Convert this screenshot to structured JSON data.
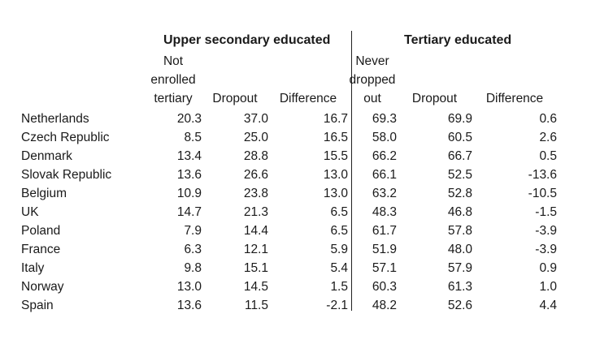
{
  "headers": {
    "upper_secondary": "Upper secondary educated",
    "tertiary": "Tertiary educated",
    "col_country": "",
    "col_not_enrolled": [
      "Not",
      "enrolled",
      "tertiary"
    ],
    "col_dropout_upper": "Dropout",
    "col_difference_upper": "Difference",
    "col_never_dropped": [
      "Never",
      "dropped",
      "out"
    ],
    "col_dropout_tertiary": "Dropout",
    "col_difference_tertiary": "Difference"
  },
  "rows": [
    {
      "country": "Netherlands",
      "not_enrolled": "20.3",
      "dropout_upper": "37.0",
      "diff_upper": "16.7",
      "diff_upper_bold": true,
      "never_dropped": "69.3",
      "dropout_tertiary": "69.9",
      "diff_tertiary": "0.6",
      "diff_tertiary_bold": false
    },
    {
      "country": "Czech Republic",
      "not_enrolled": "8.5",
      "dropout_upper": "25.0",
      "diff_upper": "16.5",
      "diff_upper_bold": true,
      "never_dropped": "58.0",
      "dropout_tertiary": "60.5",
      "diff_tertiary": "2.6",
      "diff_tertiary_bold": false
    },
    {
      "country": "Denmark",
      "not_enrolled": "13.4",
      "dropout_upper": "28.8",
      "diff_upper": "15.5",
      "diff_upper_bold": true,
      "never_dropped": "66.2",
      "dropout_tertiary": "66.7",
      "diff_tertiary": "0.5",
      "diff_tertiary_bold": false
    },
    {
      "country": "Slovak Republic",
      "not_enrolled": "13.6",
      "dropout_upper": "26.6",
      "diff_upper": "13.0",
      "diff_upper_bold": true,
      "never_dropped": "66.1",
      "dropout_tertiary": "52.5",
      "diff_tertiary": "-13.6",
      "diff_tertiary_bold": false
    },
    {
      "country": "Belgium",
      "not_enrolled": "10.9",
      "dropout_upper": "23.8",
      "diff_upper": "13.0",
      "diff_upper_bold": true,
      "never_dropped": "63.2",
      "dropout_tertiary": "52.8",
      "diff_tertiary": "-10.5",
      "diff_tertiary_bold": true
    },
    {
      "country": "UK",
      "not_enrolled": "14.7",
      "dropout_upper": "21.3",
      "diff_upper": "6.5",
      "diff_upper_bold": false,
      "never_dropped": "48.3",
      "dropout_tertiary": "46.8",
      "diff_tertiary": "-1.5",
      "diff_tertiary_bold": false
    },
    {
      "country": "Poland",
      "not_enrolled": "7.9",
      "dropout_upper": "14.4",
      "diff_upper": "6.5",
      "diff_upper_bold": false,
      "never_dropped": "61.7",
      "dropout_tertiary": "57.8",
      "diff_tertiary": "-3.9",
      "diff_tertiary_bold": false
    },
    {
      "country": "France",
      "not_enrolled": "6.3",
      "dropout_upper": "12.1",
      "diff_upper": "5.9",
      "diff_upper_bold": true,
      "never_dropped": "51.9",
      "dropout_tertiary": "48.0",
      "diff_tertiary": "-3.9",
      "diff_tertiary_bold": false
    },
    {
      "country": "Italy",
      "not_enrolled": "9.8",
      "dropout_upper": "15.1",
      "diff_upper": "5.4",
      "diff_upper_bold": true,
      "never_dropped": "57.1",
      "dropout_tertiary": "57.9",
      "diff_tertiary": "0.9",
      "diff_tertiary_bold": false
    },
    {
      "country": "Norway",
      "not_enrolled": "13.0",
      "dropout_upper": "14.5",
      "diff_upper": "1.5",
      "diff_upper_bold": false,
      "never_dropped": "60.3",
      "dropout_tertiary": "61.3",
      "diff_tertiary": "1.0",
      "diff_tertiary_bold": false
    },
    {
      "country": "Spain",
      "not_enrolled": "13.6",
      "dropout_upper": "11.5",
      "diff_upper": "-2.1",
      "diff_upper_bold": false,
      "never_dropped": "48.2",
      "dropout_tertiary": "52.6",
      "diff_tertiary": "4.4",
      "diff_tertiary_bold": false
    }
  ]
}
